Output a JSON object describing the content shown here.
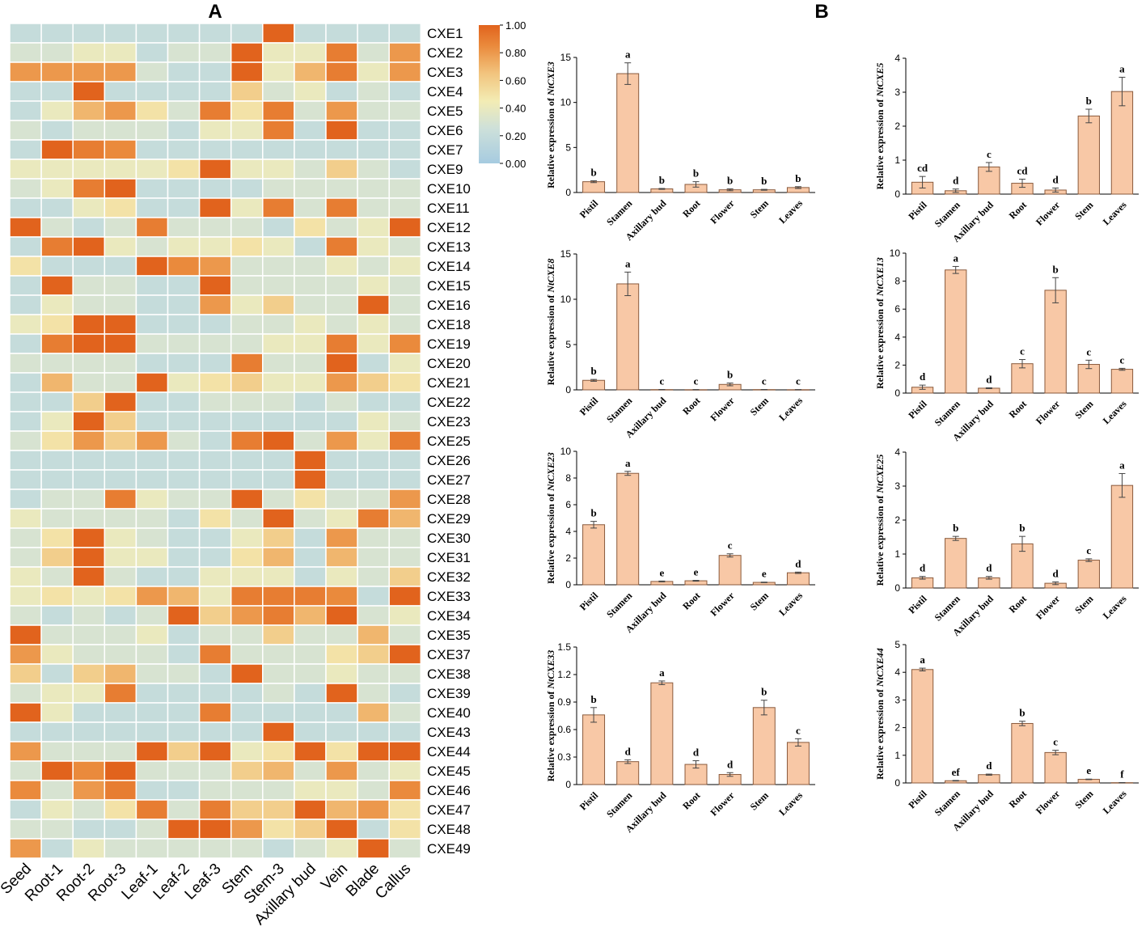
{
  "panel_labels": {
    "a": "A",
    "b": "B"
  },
  "chart_data": [
    {
      "type": "heatmap",
      "title": "",
      "columns": [
        "Seed",
        "Root-1",
        "Root-2",
        "Root-3",
        "Leaf-1",
        "Leaf-2",
        "Leaf-3",
        "Stem",
        "Stem-3",
        "Axillary bud",
        "Vein",
        "Blade",
        "Callus"
      ],
      "rows": [
        "CXE1",
        "CXE2",
        "CXE3",
        "CXE4",
        "CXE5",
        "CXE6",
        "CXE7",
        "CXE9",
        "CXE10",
        "CXE11",
        "CXE12",
        "CXE13",
        "CXE14",
        "CXE15",
        "CXE16",
        "CXE18",
        "CXE19",
        "CXE20",
        "CXE21",
        "CXE22",
        "CXE23",
        "CXE25",
        "CXE26",
        "CXE27",
        "CXE28",
        "CXE29",
        "CXE30",
        "CXE31",
        "CXE32",
        "CXE33",
        "CXE34",
        "CXE35",
        "CXE37",
        "CXE38",
        "CXE39",
        "CXE40",
        "CXE43",
        "CXE44",
        "CXE45",
        "CXE46",
        "CXE47",
        "CXE48",
        "CXE49"
      ],
      "values": [
        [
          0.2,
          0.2,
          0.2,
          0.2,
          0.2,
          0.2,
          0.2,
          0.2,
          1.0,
          0.2,
          0.2,
          0.2,
          0.2
        ],
        [
          0.3,
          0.3,
          0.4,
          0.4,
          0.2,
          0.3,
          0.3,
          1.0,
          0.4,
          0.4,
          0.9,
          0.3,
          0.8
        ],
        [
          0.8,
          0.8,
          0.8,
          0.8,
          0.3,
          0.2,
          0.2,
          1.0,
          0.4,
          0.7,
          0.9,
          0.4,
          0.8
        ],
        [
          0.2,
          0.2,
          1.0,
          0.2,
          0.2,
          0.2,
          0.2,
          0.6,
          0.3,
          0.4,
          0.2,
          0.3,
          0.2
        ],
        [
          0.2,
          0.4,
          0.7,
          0.8,
          0.5,
          0.3,
          0.9,
          0.5,
          0.9,
          0.3,
          0.8,
          0.3,
          0.3
        ],
        [
          0.3,
          0.2,
          0.3,
          0.3,
          0.3,
          0.2,
          0.4,
          0.4,
          0.9,
          0.2,
          1.0,
          0.2,
          0.2
        ],
        [
          0.2,
          1.0,
          0.9,
          0.85,
          0.2,
          0.2,
          0.2,
          0.2,
          0.2,
          0.2,
          0.2,
          0.2,
          0.2
        ],
        [
          0.4,
          0.4,
          0.4,
          0.4,
          0.4,
          0.5,
          1.0,
          0.4,
          0.4,
          0.3,
          0.6,
          0.3,
          0.2
        ],
        [
          0.3,
          0.4,
          0.9,
          1.0,
          0.2,
          0.2,
          0.2,
          0.2,
          0.3,
          0.3,
          0.3,
          0.3,
          0.3
        ],
        [
          0.2,
          0.2,
          0.4,
          0.5,
          0.2,
          0.2,
          1.0,
          0.4,
          0.9,
          0.3,
          0.9,
          0.3,
          0.3
        ],
        [
          1.0,
          0.3,
          0.2,
          0.3,
          0.9,
          0.3,
          0.3,
          0.3,
          0.2,
          0.5,
          0.3,
          0.4,
          1.0
        ],
        [
          0.2,
          0.9,
          1.0,
          0.4,
          0.3,
          0.4,
          0.4,
          0.5,
          0.4,
          0.2,
          0.9,
          0.4,
          0.3
        ],
        [
          0.5,
          0.2,
          0.2,
          0.2,
          1.0,
          0.85,
          0.8,
          0.3,
          0.3,
          0.3,
          0.4,
          0.3,
          0.4
        ],
        [
          0.2,
          1.0,
          0.3,
          0.3,
          0.2,
          0.2,
          1.0,
          0.3,
          0.3,
          0.3,
          0.3,
          0.4,
          0.3
        ],
        [
          0.2,
          0.4,
          0.3,
          0.3,
          0.2,
          0.2,
          0.8,
          0.4,
          0.6,
          0.3,
          0.3,
          1.0,
          0.3
        ],
        [
          0.4,
          0.5,
          1.0,
          1.0,
          0.2,
          0.2,
          0.2,
          0.3,
          0.3,
          0.4,
          0.3,
          0.4,
          0.3
        ],
        [
          0.2,
          0.9,
          1.0,
          1.0,
          0.3,
          0.3,
          0.3,
          0.3,
          0.4,
          0.4,
          0.9,
          0.4,
          0.85
        ],
        [
          0.3,
          0.3,
          0.3,
          0.3,
          0.2,
          0.2,
          0.2,
          0.9,
          0.3,
          0.3,
          1.0,
          0.2,
          0.4
        ],
        [
          0.2,
          0.7,
          0.3,
          0.3,
          1.0,
          0.4,
          0.5,
          0.6,
          0.4,
          0.4,
          0.8,
          0.6,
          0.5
        ],
        [
          0.2,
          0.2,
          0.6,
          1.0,
          0.2,
          0.2,
          0.3,
          0.3,
          0.3,
          0.2,
          0.3,
          0.2,
          0.2
        ],
        [
          0.2,
          0.4,
          1.0,
          0.6,
          0.2,
          0.2,
          0.2,
          0.2,
          0.2,
          0.2,
          0.2,
          0.4,
          0.3
        ],
        [
          0.3,
          0.5,
          0.8,
          0.6,
          0.8,
          0.3,
          0.2,
          0.9,
          1.0,
          0.3,
          0.8,
          0.4,
          0.9
        ],
        [
          0.2,
          0.2,
          0.2,
          0.2,
          0.2,
          0.2,
          0.2,
          0.2,
          0.2,
          1.0,
          0.2,
          0.2,
          0.2
        ],
        [
          0.2,
          0.2,
          0.2,
          0.2,
          0.2,
          0.2,
          0.2,
          0.2,
          0.2,
          1.0,
          0.2,
          0.2,
          0.2
        ],
        [
          0.2,
          0.3,
          0.3,
          0.9,
          0.4,
          0.3,
          0.3,
          1.0,
          0.3,
          0.5,
          0.3,
          0.3,
          0.8
        ],
        [
          0.4,
          0.3,
          0.3,
          0.3,
          0.3,
          0.2,
          0.5,
          0.3,
          1.0,
          0.3,
          0.4,
          0.9,
          0.7
        ],
        [
          0.3,
          0.5,
          1.0,
          0.4,
          0.3,
          0.2,
          0.2,
          0.4,
          0.6,
          0.2,
          0.8,
          0.3,
          0.3
        ],
        [
          0.3,
          0.6,
          1.0,
          0.4,
          0.4,
          0.2,
          0.2,
          0.5,
          0.7,
          0.2,
          0.7,
          0.3,
          0.3
        ],
        [
          0.4,
          0.3,
          1.0,
          0.3,
          0.2,
          0.2,
          0.4,
          0.4,
          0.4,
          0.2,
          0.4,
          0.3,
          0.6
        ],
        [
          0.4,
          0.5,
          0.4,
          0.5,
          0.8,
          0.7,
          0.4,
          0.9,
          0.9,
          0.9,
          0.85,
          0.2,
          1.0
        ],
        [
          0.3,
          0.2,
          0.3,
          0.2,
          0.3,
          1.0,
          0.6,
          0.8,
          0.9,
          0.7,
          1.0,
          0.3,
          0.4
        ],
        [
          1.0,
          0.3,
          0.3,
          0.3,
          0.4,
          0.2,
          0.3,
          0.3,
          0.6,
          0.3,
          0.3,
          0.7,
          0.3
        ],
        [
          0.8,
          0.4,
          0.3,
          0.3,
          0.3,
          0.2,
          0.9,
          0.3,
          0.3,
          0.3,
          0.5,
          0.6,
          1.0
        ],
        [
          0.6,
          0.2,
          0.6,
          0.7,
          0.3,
          0.3,
          0.2,
          1.0,
          0.3,
          0.3,
          0.4,
          0.3,
          0.3
        ],
        [
          0.3,
          0.4,
          0.4,
          0.9,
          0.2,
          0.2,
          0.2,
          0.2,
          0.3,
          0.2,
          1.0,
          0.3,
          0.2
        ],
        [
          1.0,
          0.4,
          0.2,
          0.2,
          0.2,
          0.2,
          0.9,
          0.2,
          0.2,
          0.2,
          0.2,
          0.7,
          0.3
        ],
        [
          0.2,
          0.2,
          0.2,
          0.2,
          0.2,
          0.2,
          0.2,
          0.2,
          1.0,
          0.2,
          0.2,
          0.2,
          0.2
        ],
        [
          0.8,
          0.3,
          0.3,
          0.3,
          1.0,
          0.6,
          1.0,
          0.4,
          0.5,
          1.0,
          0.5,
          1.0,
          1.0
        ],
        [
          0.3,
          1.0,
          0.85,
          1.0,
          0.3,
          0.3,
          0.3,
          0.6,
          0.7,
          0.3,
          0.8,
          0.3,
          0.4
        ],
        [
          0.85,
          0.3,
          0.8,
          0.9,
          0.2,
          0.2,
          0.3,
          0.3,
          0.3,
          0.4,
          0.4,
          0.3,
          0.85
        ],
        [
          0.2,
          0.4,
          0.3,
          0.5,
          0.9,
          0.3,
          0.9,
          0.6,
          0.6,
          1.0,
          0.7,
          0.8,
          0.5
        ],
        [
          0.3,
          0.3,
          0.2,
          0.2,
          0.3,
          1.0,
          1.0,
          0.8,
          0.5,
          0.6,
          1.0,
          0.2,
          0.5
        ],
        [
          0.8,
          0.2,
          0.4,
          0.3,
          0.3,
          0.3,
          0.3,
          0.3,
          0.2,
          0.3,
          0.4,
          1.0,
          0.3
        ]
      ],
      "colorbar": {
        "min": 0.0,
        "max": 1.0,
        "ticks": [
          "0.00",
          "0.20",
          "0.40",
          "0.60",
          "0.80",
          "1.00"
        ],
        "low_color": "#a6cbe0",
        "mid_color": "#f7f0b0",
        "high_color": "#e1631d"
      }
    },
    {
      "type": "bar",
      "title": "",
      "categories": [
        "Pistil",
        "Stamen",
        "Axillary bud",
        "Root",
        "Flower",
        "Stem",
        "Leaves"
      ],
      "color": "#f8c8a6",
      "panels": [
        {
          "ylabel_prefix": "Relative expression of ",
          "gene": "NtCXE3",
          "ylim": [
            0,
            15
          ],
          "yticks": [
            "0",
            "5",
            "10",
            "15"
          ],
          "values": [
            1.2,
            13.2,
            0.4,
            0.9,
            0.3,
            0.3,
            0.55
          ],
          "errors": [
            0.1,
            1.2,
            0.05,
            0.3,
            0.1,
            0.05,
            0.1
          ],
          "letters": [
            "b",
            "a",
            "b",
            "b",
            "b",
            "b",
            "b"
          ]
        },
        {
          "ylabel_prefix": "Relative expression of ",
          "gene": "NtCXE5",
          "ylim": [
            0,
            4
          ],
          "yticks": [
            "0",
            "1",
            "2",
            "3",
            "4"
          ],
          "values": [
            0.35,
            0.1,
            0.8,
            0.32,
            0.12,
            2.3,
            3.02
          ],
          "errors": [
            0.17,
            0.05,
            0.13,
            0.12,
            0.06,
            0.2,
            0.42
          ],
          "letters": [
            "cd",
            "d",
            "c",
            "cd",
            "d",
            "b",
            "a"
          ]
        },
        {
          "ylabel_prefix": "Relative expression of ",
          "gene": "NtCXE8",
          "ylim": [
            0,
            15
          ],
          "yticks": [
            "0",
            "5",
            "10",
            "15"
          ],
          "values": [
            1.05,
            11.7,
            0.03,
            0.02,
            0.6,
            0.03,
            0.02
          ],
          "errors": [
            0.1,
            1.3,
            0.01,
            0.01,
            0.15,
            0.01,
            0.01
          ],
          "letters": [
            "b",
            "a",
            "c",
            "c",
            "b",
            "c",
            "c"
          ]
        },
        {
          "ylabel_prefix": "Relative expression of ",
          "gene": "NtCXE13",
          "ylim": [
            0,
            10
          ],
          "yticks": [
            "0",
            "2",
            "4",
            "6",
            "8",
            "10"
          ],
          "values": [
            0.42,
            8.8,
            0.35,
            2.1,
            7.35,
            2.05,
            1.7
          ],
          "errors": [
            0.15,
            0.25,
            0.03,
            0.3,
            0.9,
            0.3,
            0.07
          ],
          "letters": [
            "d",
            "a",
            "d",
            "c",
            "b",
            "c",
            "c"
          ]
        },
        {
          "ylabel_prefix": "Relative expression of ",
          "gene": "NtCXE23",
          "ylim": [
            0,
            10
          ],
          "yticks": [
            "0",
            "2",
            "4",
            "6",
            "8",
            "10"
          ],
          "values": [
            4.5,
            8.35,
            0.25,
            0.3,
            2.2,
            0.18,
            0.9
          ],
          "errors": [
            0.25,
            0.15,
            0.03,
            0.03,
            0.12,
            0.02,
            0.05
          ],
          "letters": [
            "b",
            "a",
            "e",
            "e",
            "c",
            "e",
            "d"
          ]
        },
        {
          "ylabel_prefix": "Relative expression of ",
          "gene": "NtCXE25",
          "ylim": [
            0,
            4
          ],
          "yticks": [
            "0",
            "1",
            "2",
            "3",
            "4"
          ],
          "values": [
            0.3,
            1.46,
            0.3,
            1.3,
            0.14,
            0.82,
            3.02
          ],
          "errors": [
            0.04,
            0.06,
            0.04,
            0.22,
            0.04,
            0.04,
            0.35
          ],
          "letters": [
            "d",
            "b",
            "d",
            "b",
            "d",
            "c",
            "a"
          ]
        },
        {
          "ylabel_prefix": "Relative expression of ",
          "gene": "NtCXE33",
          "ylim": [
            0,
            1.5
          ],
          "yticks": [
            "0",
            "0.3",
            "0.6",
            "0.9",
            "1.2",
            "1.5"
          ],
          "values": [
            0.76,
            0.25,
            1.11,
            0.22,
            0.11,
            0.84,
            0.46
          ],
          "errors": [
            0.08,
            0.02,
            0.02,
            0.04,
            0.02,
            0.08,
            0.04
          ],
          "letters": [
            "b",
            "d",
            "a",
            "d",
            "d",
            "b",
            "c"
          ]
        },
        {
          "ylabel_prefix": "Relative expression of ",
          "gene": "NtCXE44",
          "ylim": [
            0,
            5
          ],
          "yticks": [
            "0",
            "1",
            "2",
            "3",
            "4",
            "5"
          ],
          "values": [
            4.1,
            0.08,
            0.3,
            2.15,
            1.1,
            0.13,
            0.01
          ],
          "errors": [
            0.05,
            0.01,
            0.02,
            0.08,
            0.08,
            0.01,
            0.005
          ],
          "letters": [
            "a",
            "ef",
            "d",
            "b",
            "c",
            "e",
            "f"
          ]
        }
      ]
    }
  ]
}
